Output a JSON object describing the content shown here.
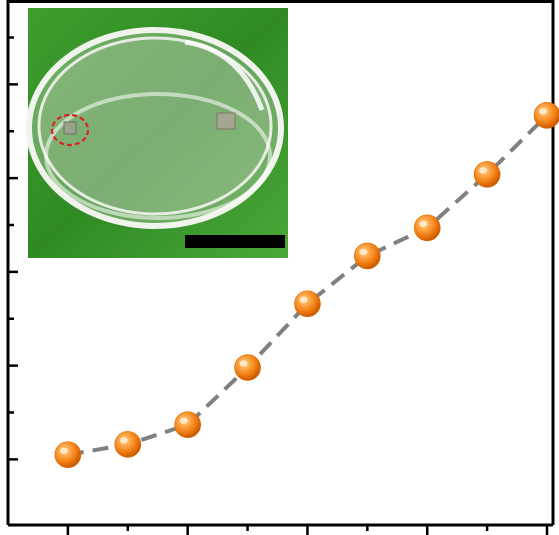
{
  "chart_data": {
    "type": "line",
    "title": "",
    "xlabel": "",
    "ylabel": "",
    "x": [
      1,
      2,
      3,
      4,
      5,
      6,
      7,
      8,
      9
    ],
    "series": [
      {
        "values": [
          0.25,
          0.8,
          1.85,
          4.9,
          8.3,
          10.85,
          12.35,
          15.2,
          18.35
        ]
      }
    ],
    "xlim": [
      0,
      9.1
    ],
    "ylim": [
      -3.5,
      24.5
    ],
    "grid": false,
    "legend": "none",
    "colors": {
      "line": "#808080",
      "marker": "#f07c10",
      "marker_highlight": "#ffe9c8",
      "axis": "#000000"
    },
    "inset": {
      "kind": "photo",
      "subject": "petri-dish",
      "background": "#3f9a2e"
    }
  }
}
